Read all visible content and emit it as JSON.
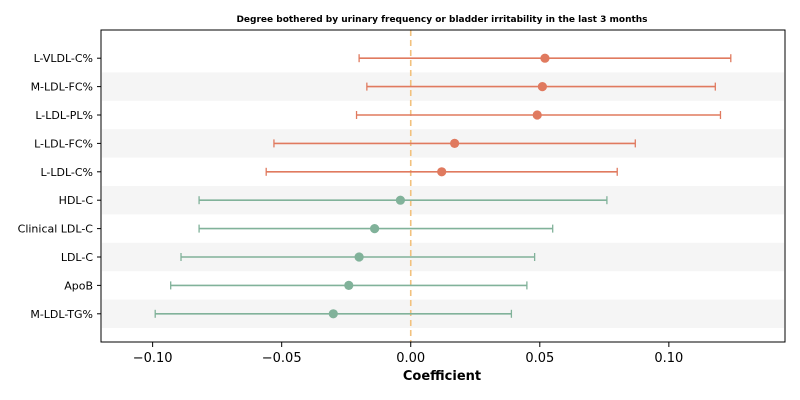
{
  "chart_data": {
    "type": "forest",
    "title": "Degree bothered by urinary frequency or bladder irritability in the last 3 months",
    "xlabel": "Coefficient",
    "ylabel": "",
    "xlim": [
      -0.12,
      0.145
    ],
    "xticks": [
      -0.1,
      -0.05,
      0.0,
      0.05,
      0.1
    ],
    "xtick_labels": [
      "−0.10",
      "−0.05",
      "0.00",
      "0.05",
      "0.10"
    ],
    "reference_line": 0.0,
    "grid": false,
    "colors": {
      "positive": "#e07a5f",
      "negative": "#81b29a",
      "reference": "#f2c17d",
      "band": "#f5f5f5"
    },
    "rows": [
      {
        "label": "L-VLDL-C%",
        "estimate": 0.052,
        "lower": -0.02,
        "upper": 0.124
      },
      {
        "label": "M-LDL-FC%",
        "estimate": 0.051,
        "lower": -0.017,
        "upper": 0.118
      },
      {
        "label": "L-LDL-PL%",
        "estimate": 0.049,
        "lower": -0.021,
        "upper": 0.12
      },
      {
        "label": "L-LDL-FC%",
        "estimate": 0.017,
        "lower": -0.053,
        "upper": 0.087
      },
      {
        "label": "L-LDL-C%",
        "estimate": 0.012,
        "lower": -0.056,
        "upper": 0.08
      },
      {
        "label": "HDL-C",
        "estimate": -0.004,
        "lower": -0.082,
        "upper": 0.076
      },
      {
        "label": "Clinical LDL-C",
        "estimate": -0.014,
        "lower": -0.082,
        "upper": 0.055
      },
      {
        "label": "LDL-C",
        "estimate": -0.02,
        "lower": -0.089,
        "upper": 0.048
      },
      {
        "label": "ApoB",
        "estimate": -0.024,
        "lower": -0.093,
        "upper": 0.045
      },
      {
        "label": "M-LDL-TG%",
        "estimate": -0.03,
        "lower": -0.099,
        "upper": 0.039
      }
    ]
  }
}
